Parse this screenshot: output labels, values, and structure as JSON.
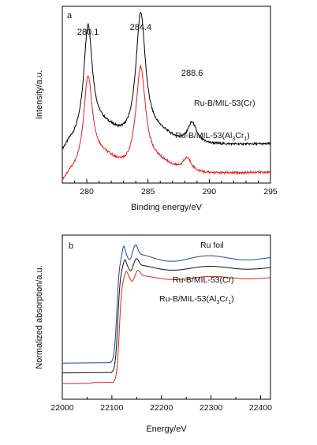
{
  "chart_data": [
    {
      "type": "line",
      "panel_label": "a",
      "xlabel": "Binding energy/eV",
      "ylabel": "Intensity/a.u.",
      "xlim": [
        278,
        295
      ],
      "xticks": [
        "280",
        "285",
        "290",
        "295"
      ],
      "grid": false,
      "peak_labels": [
        {
          "text": "280.1",
          "x": 280.1
        },
        {
          "text": "284.4",
          "x": 284.4
        },
        {
          "text": "288.6",
          "x": 288.6
        }
      ],
      "series": [
        {
          "name": "Ru-B/MIL-53(Cr)",
          "color": "#000000",
          "peaks": [
            {
              "center": 280.1,
              "amp": 0.62,
              "width": 0.42
            },
            {
              "center": 284.4,
              "amp": 0.72,
              "width": 0.48
            },
            {
              "center": 288.6,
              "amp": 0.12,
              "width": 0.45
            }
          ],
          "baseline": {
            "start": 0.2,
            "end": 0.22
          }
        },
        {
          "name": "Ru-B/MIL-53(Al3Cr1)",
          "color": "#e0201a",
          "peaks": [
            {
              "center": 280.1,
              "amp": 0.5,
              "width": 0.42
            },
            {
              "center": 284.4,
              "amp": 0.58,
              "width": 0.48
            },
            {
              "center": 288.2,
              "amp": 0.08,
              "width": 0.45
            }
          ],
          "baseline": {
            "start": 0.03,
            "end": 0.06
          }
        }
      ],
      "legend": [
        {
          "text": "Ru-B/MIL-53(Cr)"
        },
        {
          "main": "Ru-B/MIL-53(Al",
          "sub1": "3",
          "mid": "Cr",
          "sub2": "1",
          "end": ")"
        }
      ]
    },
    {
      "type": "line",
      "panel_label": "b",
      "xlabel": "Energy/eV",
      "ylabel": "Normalized absorption/a.u.",
      "xlim": [
        22000,
        22420
      ],
      "xticks": [
        "22000",
        "22100",
        "22200",
        "22300",
        "22400"
      ],
      "grid": false,
      "series": [
        {
          "name": "Ru foil",
          "color": "#2a3f9a",
          "pre_edge": 0.22,
          "post_edge": 0.86,
          "edge": 22110
        },
        {
          "name": "Ru-B/MIL-53(Cr)",
          "color": "#111111",
          "pre_edge": 0.16,
          "post_edge": 0.8,
          "edge": 22112
        },
        {
          "name": "Ru-B/MIL-53(Al3Cr1)",
          "color": "#e0201a",
          "pre_edge": 0.1,
          "post_edge": 0.74,
          "edge": 22115
        }
      ],
      "legend": [
        {
          "text": "Ru foil"
        },
        {
          "text": "Ru-B/MIL-53(Cr)"
        },
        {
          "main": "Ru-B/MIL-53(Al",
          "sub1": "3",
          "mid": "Cr",
          "sub2": "1",
          "end": ")"
        }
      ]
    }
  ]
}
